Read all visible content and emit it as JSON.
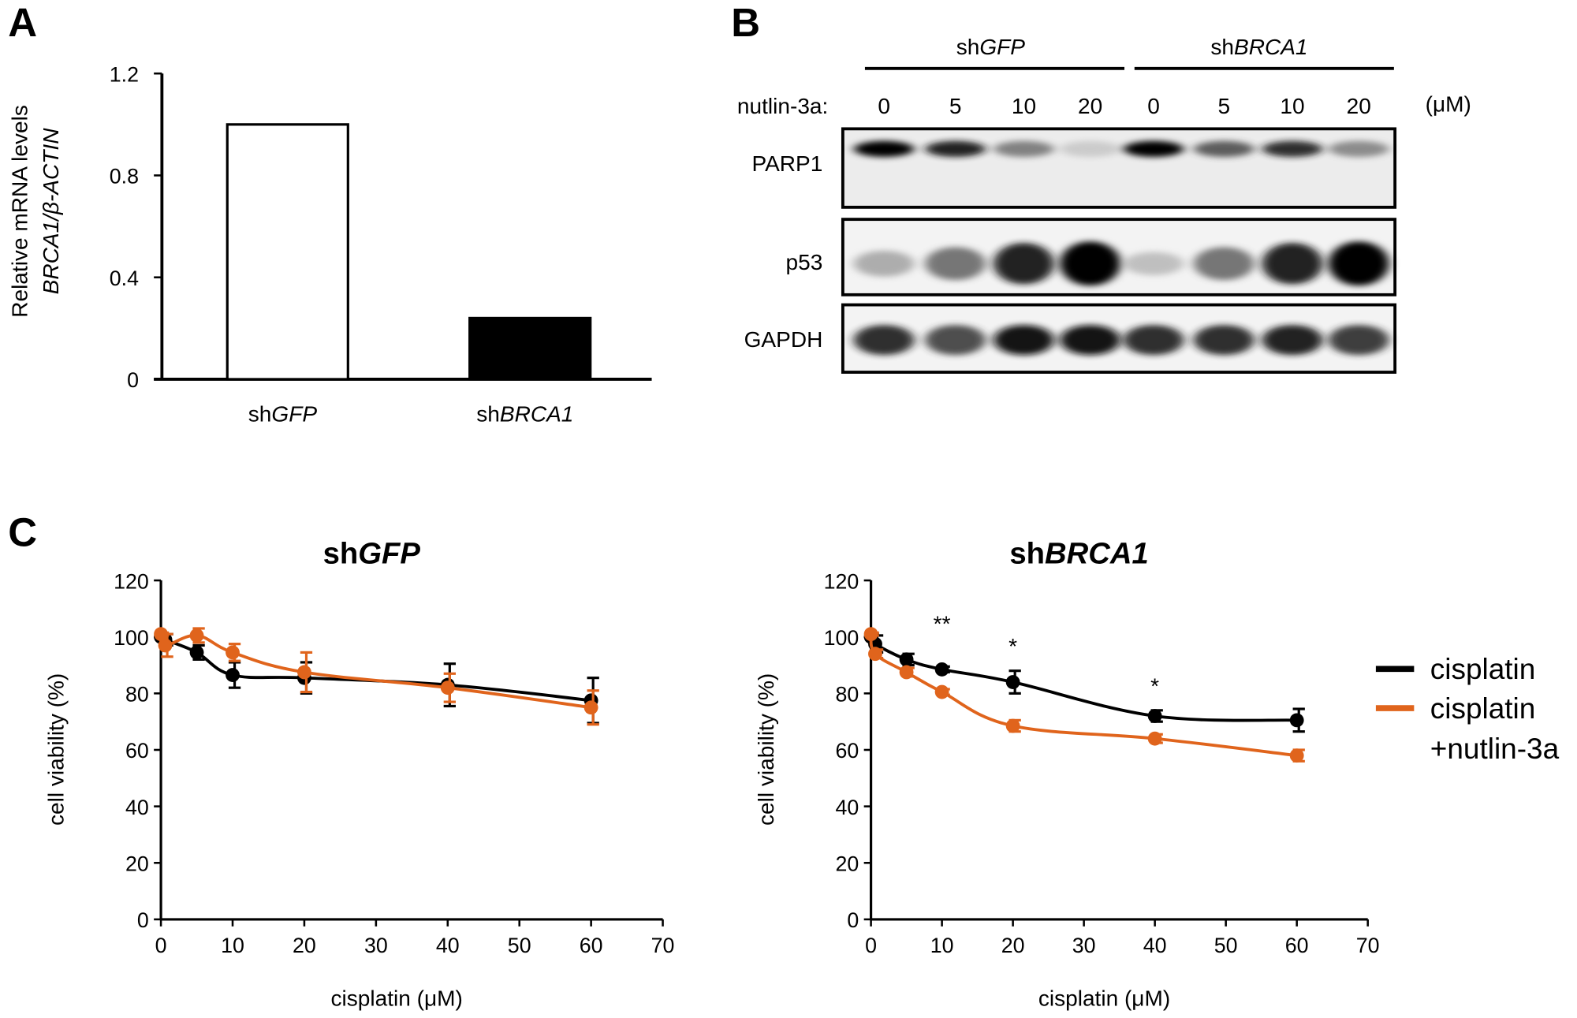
{
  "panels": {
    "a": "A",
    "b": "B",
    "c": "C"
  },
  "chart_data": [
    {
      "type": "bar",
      "ylabel_line1": "Relative mRNA levels",
      "ylabel_line2": "BRCA1/β-ACTIN",
      "categories": [
        {
          "prefix": "sh",
          "gene": "GFP"
        },
        {
          "prefix": "sh",
          "gene": "BRCA1"
        }
      ],
      "values": [
        1.0,
        0.24
      ],
      "bar_colors": [
        "#ffffff",
        "#000000"
      ],
      "ylim": [
        0,
        1.2
      ],
      "yticks": [
        "0",
        "0.4",
        "0.8",
        "1.2"
      ],
      "grid": false
    },
    {
      "type": "blot",
      "groups": [
        {
          "prefix": "sh",
          "gene": "GFP"
        },
        {
          "prefix": "sh",
          "gene": "BRCA1"
        }
      ],
      "treatment_label": "nutlin-3a:",
      "doses": [
        "0",
        "5",
        "10",
        "20",
        "0",
        "5",
        "10",
        "20"
      ],
      "unit": "(μM)",
      "rows": [
        {
          "label": "PARP1",
          "band_intensity": [
            1.0,
            0.9,
            0.55,
            0.15,
            1.0,
            0.7,
            0.85,
            0.5
          ]
        },
        {
          "label": "p53",
          "band_intensity": [
            0.35,
            0.6,
            0.9,
            1.0,
            0.25,
            0.6,
            0.9,
            1.0
          ]
        },
        {
          "label": "GAPDH",
          "band_intensity": [
            0.85,
            0.75,
            0.95,
            0.95,
            0.85,
            0.85,
            0.9,
            0.8
          ]
        }
      ]
    },
    {
      "type": "line",
      "title": {
        "prefix": "sh",
        "gene": "GFP"
      },
      "xlabel": "cisplatin (μM)",
      "ylabel": "cell  viability (%)",
      "xlim": [
        0,
        70
      ],
      "ylim": [
        0,
        120
      ],
      "xticks": [
        "0",
        "10",
        "20",
        "30",
        "40",
        "50",
        "60",
        "70"
      ],
      "yticks": [
        "0",
        "20",
        "40",
        "60",
        "80",
        "100",
        "120"
      ],
      "series": [
        {
          "color": "#000000",
          "x": [
            0,
            0.6,
            5,
            10,
            20,
            40,
            60
          ],
          "y": [
            100,
            99,
            94.5,
            86.5,
            85.5,
            83,
            77.5
          ],
          "err": [
            1,
            2,
            2.5,
            4.5,
            5.5,
            7.5,
            8
          ]
        },
        {
          "color": "#e0641c",
          "x": [
            0,
            0.6,
            5,
            10,
            20,
            40,
            60
          ],
          "y": [
            101,
            97,
            100.5,
            94.5,
            87.5,
            82,
            75
          ],
          "err": [
            0.5,
            4,
            2.5,
            3,
            7,
            5,
            6
          ]
        }
      ],
      "annotations": []
    },
    {
      "type": "line",
      "title": {
        "prefix": "sh",
        "gene": "BRCA1"
      },
      "xlabel": "cisplatin (μM)",
      "ylabel": "cell  viability (%)",
      "xlim": [
        0,
        70
      ],
      "ylim": [
        0,
        120
      ],
      "xticks": [
        "0",
        "10",
        "20",
        "30",
        "40",
        "50",
        "60",
        "70"
      ],
      "yticks": [
        "0",
        "20",
        "40",
        "60",
        "80",
        "100",
        "120"
      ],
      "series": [
        {
          "name": "cisplatin",
          "color": "#000000",
          "x": [
            0,
            0.6,
            5,
            10,
            20,
            40,
            60
          ],
          "y": [
            100,
            97.5,
            92,
            88.5,
            84,
            72,
            70.5
          ],
          "err": [
            1,
            3,
            2,
            1,
            4,
            2,
            4
          ]
        },
        {
          "name": "cisplatin +nutlin-3a",
          "color": "#e0641c",
          "x": [
            0,
            0.6,
            5,
            10,
            20,
            40,
            60
          ],
          "y": [
            101,
            94,
            87.5,
            80.5,
            68.5,
            64,
            58
          ],
          "err": [
            0.5,
            1.5,
            1.5,
            1,
            2,
            1.5,
            2
          ]
        }
      ],
      "annotations": [
        {
          "x": 10,
          "y": 107,
          "text": "**"
        },
        {
          "x": 20,
          "y": 99,
          "text": "*"
        },
        {
          "x": 40,
          "y": 85,
          "text": "*"
        }
      ],
      "legend": {
        "position": "right",
        "entries": [
          {
            "line1": "cisplatin",
            "line2": ""
          },
          {
            "line1": "cisplatin",
            "line2": "+nutlin-3a"
          }
        ]
      }
    }
  ]
}
